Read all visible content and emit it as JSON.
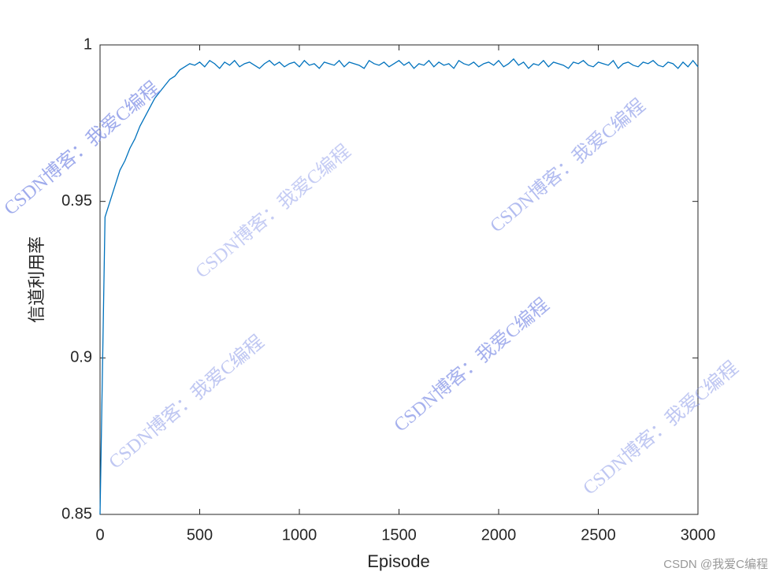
{
  "chart_data": {
    "type": "line",
    "xlabel": "Episode",
    "ylabel": "信道利用率",
    "x": [
      0,
      25,
      50,
      75,
      100,
      125,
      150,
      175,
      200,
      225,
      250,
      275,
      300,
      325,
      350,
      375,
      400,
      425,
      450,
      475,
      500,
      525,
      550,
      575,
      600,
      625,
      650,
      675,
      700,
      725,
      750,
      775,
      800,
      825,
      850,
      875,
      900,
      925,
      950,
      975,
      1000,
      1025,
      1050,
      1075,
      1100,
      1125,
      1150,
      1175,
      1200,
      1225,
      1250,
      1275,
      1300,
      1325,
      1350,
      1375,
      1400,
      1425,
      1450,
      1475,
      1500,
      1525,
      1550,
      1575,
      1600,
      1625,
      1650,
      1675,
      1700,
      1725,
      1750,
      1775,
      1800,
      1825,
      1850,
      1875,
      1900,
      1925,
      1950,
      1975,
      2000,
      2025,
      2050,
      2075,
      2100,
      2125,
      2150,
      2175,
      2200,
      2225,
      2250,
      2275,
      2300,
      2325,
      2350,
      2375,
      2400,
      2425,
      2450,
      2475,
      2500,
      2525,
      2550,
      2575,
      2600,
      2625,
      2650,
      2675,
      2700,
      2725,
      2750,
      2775,
      2800,
      2825,
      2850,
      2875,
      2900,
      2925,
      2950,
      2975,
      3000
    ],
    "series": [
      {
        "color": "#0072bd",
        "values": [
          0.85,
          0.945,
          0.95,
          0.955,
          0.96,
          0.963,
          0.967,
          0.97,
          0.974,
          0.977,
          0.98,
          0.983,
          0.985,
          0.987,
          0.989,
          0.99,
          0.992,
          0.993,
          0.994,
          0.9935,
          0.9945,
          0.993,
          0.995,
          0.994,
          0.9925,
          0.9945,
          0.9935,
          0.995,
          0.993,
          0.994,
          0.9945,
          0.9935,
          0.9925,
          0.994,
          0.995,
          0.9935,
          0.9945,
          0.993,
          0.994,
          0.9945,
          0.993,
          0.995,
          0.9935,
          0.994,
          0.9925,
          0.9945,
          0.994,
          0.9935,
          0.995,
          0.993,
          0.9945,
          0.994,
          0.9935,
          0.9925,
          0.995,
          0.994,
          0.9935,
          0.9945,
          0.993,
          0.994,
          0.995,
          0.9935,
          0.9945,
          0.9925,
          0.994,
          0.9935,
          0.995,
          0.993,
          0.9945,
          0.9935,
          0.994,
          0.9925,
          0.995,
          0.994,
          0.9935,
          0.9945,
          0.993,
          0.994,
          0.9945,
          0.9935,
          0.995,
          0.993,
          0.994,
          0.9955,
          0.9935,
          0.9945,
          0.9925,
          0.994,
          0.9935,
          0.995,
          0.993,
          0.9945,
          0.994,
          0.9935,
          0.9925,
          0.9945,
          0.994,
          0.995,
          0.9935,
          0.993,
          0.9945,
          0.994,
          0.9935,
          0.995,
          0.9925,
          0.994,
          0.9945,
          0.9935,
          0.993,
          0.9945,
          0.994,
          0.995,
          0.9935,
          0.993,
          0.9945,
          0.994,
          0.9925,
          0.9945,
          0.993,
          0.995,
          0.993
        ]
      }
    ],
    "xlim": [
      0,
      3000
    ],
    "xticks": [
      0,
      500,
      1000,
      1500,
      2000,
      2500,
      3000
    ],
    "ylim": [
      0.85,
      1
    ],
    "yticks": [
      0.85,
      0.9,
      0.95,
      1
    ],
    "grid": false,
    "watermarks": [
      "CSDN博客：我爱C编程",
      "CSDN博客：我爱C编程",
      "CSDN博客：我爱C编程",
      "CSDN博客：我爱C编程",
      "CSDN博客：我爱C编程",
      "CSDN博客：我爱C编程"
    ],
    "credit": "CSDN @我爱C编程"
  }
}
